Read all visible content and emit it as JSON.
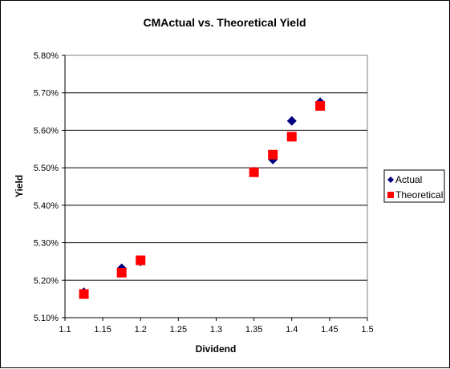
{
  "chart_data": {
    "type": "scatter",
    "title": "CMActual vs. Theoretical Yield",
    "xlabel": "Dividend",
    "ylabel": "Yield",
    "xlim": [
      1.1,
      1.5
    ],
    "ylim": [
      5.1,
      5.8
    ],
    "x_ticks": [
      "1.1",
      "1.15",
      "1.2",
      "1.25",
      "1.3",
      "1.35",
      "1.4",
      "1.45",
      "1.5"
    ],
    "x_tick_values": [
      1.1,
      1.15,
      1.2,
      1.25,
      1.3,
      1.35,
      1.4,
      1.45,
      1.5
    ],
    "y_ticks": [
      "5.10%",
      "5.20%",
      "5.30%",
      "5.40%",
      "5.50%",
      "5.60%",
      "5.70%",
      "5.80%"
    ],
    "y_tick_values": [
      5.1,
      5.2,
      5.3,
      5.4,
      5.5,
      5.6,
      5.7,
      5.8
    ],
    "grid": "horizontal",
    "legend_position": "right",
    "series": [
      {
        "name": "Actual",
        "marker": "diamond",
        "color": "#000080",
        "points": [
          {
            "x": 1.125,
            "y": 5.168
          },
          {
            "x": 1.175,
            "y": 5.232
          },
          {
            "x": 1.2,
            "y": 5.25
          },
          {
            "x": 1.35,
            "y": 5.49
          },
          {
            "x": 1.375,
            "y": 5.522
          },
          {
            "x": 1.4,
            "y": 5.625
          },
          {
            "x": 1.4375,
            "y": 5.675
          }
        ]
      },
      {
        "name": "Theoretical",
        "marker": "square",
        "color": "#ff0000",
        "points": [
          {
            "x": 1.125,
            "y": 5.163
          },
          {
            "x": 1.175,
            "y": 5.22
          },
          {
            "x": 1.2,
            "y": 5.253
          },
          {
            "x": 1.35,
            "y": 5.488
          },
          {
            "x": 1.375,
            "y": 5.535
          },
          {
            "x": 1.4,
            "y": 5.583
          },
          {
            "x": 1.4375,
            "y": 5.665
          }
        ]
      }
    ]
  }
}
